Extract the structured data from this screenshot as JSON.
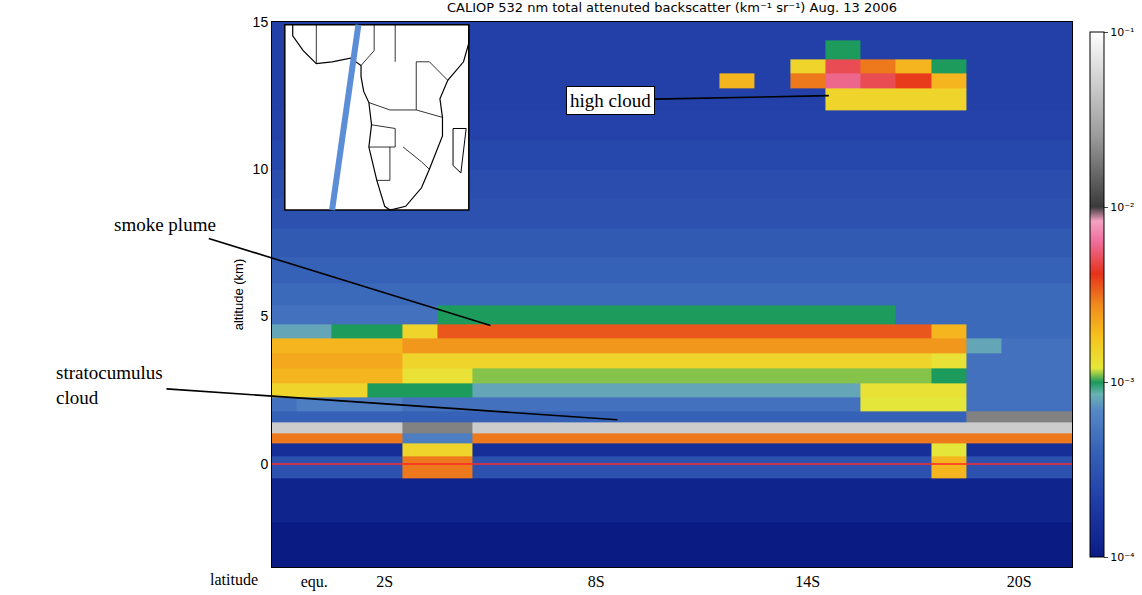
{
  "chart_data": {
    "type": "heatmap",
    "title": "CALIOP 532 nm total attenuted backscatter (km⁻¹ sr⁻¹) Aug. 13 2006",
    "xlabel": "latitude",
    "ylabel": "altitude (km)",
    "xlim": [
      -1.2,
      21.5
    ],
    "ylim": [
      -3.5,
      15
    ],
    "xticks": [
      {
        "value": 0,
        "label": "equ."
      },
      {
        "value": 2,
        "label": "2S"
      },
      {
        "value": 8,
        "label": "8S"
      },
      {
        "value": 14,
        "label": "14S"
      },
      {
        "value": 20,
        "label": "20S"
      }
    ],
    "yticks": [
      0,
      5,
      10,
      15
    ],
    "grid": false,
    "surface_altitude": 0,
    "x": [
      -1,
      0,
      1,
      2,
      3,
      4,
      5,
      6,
      7,
      8,
      9,
      10,
      11,
      12,
      13,
      14,
      15,
      16,
      17,
      18,
      19,
      20,
      21
    ],
    "y": [
      -3,
      -1,
      0,
      0.5,
      0.9,
      1.2,
      1.6,
      2.0,
      2.5,
      3.0,
      3.5,
      4.0,
      4.5,
      5.0,
      5.75,
      6.5,
      7.5,
      8.5,
      9.5,
      10.5,
      11.5,
      12.5,
      13.0,
      13.5,
      14.0,
      14.75
    ],
    "cells": [
      [
        0.0001,
        0.0001,
        0.0001,
        0.0001,
        0.0001,
        0.0001,
        0.0001,
        0.0001,
        0.0001,
        0.0001,
        0.0001,
        0.0001,
        0.0001,
        0.0001,
        0.0001,
        0.0001,
        0.0001,
        0.0001,
        0.0001,
        0.0001,
        0.0001,
        0.0001,
        0.0001
      ],
      [
        0.00012,
        0.00012,
        0.00012,
        0.00012,
        0.00012,
        0.00012,
        0.00012,
        0.00012,
        0.00012,
        0.00012,
        0.00012,
        0.00012,
        0.00012,
        0.00012,
        0.00012,
        0.00012,
        0.00012,
        0.00012,
        0.00012,
        0.00012,
        0.00012,
        0.00012,
        0.00012
      ],
      [
        0.0003,
        0.0003,
        0.0003,
        0.0003,
        0.003,
        0.003,
        0.0003,
        0.0003,
        0.0003,
        0.0003,
        0.0003,
        0.0003,
        0.0003,
        0.0003,
        0.0003,
        0.0003,
        0.0003,
        0.0003,
        0.0003,
        0.002,
        0.0003,
        0.0003,
        0.0003
      ],
      [
        0.00015,
        0.00015,
        0.00015,
        0.00015,
        0.0015,
        0.0015,
        0.00015,
        0.00015,
        0.00015,
        0.00015,
        0.00015,
        0.00015,
        0.00015,
        0.00015,
        0.00015,
        0.00015,
        0.00015,
        0.00015,
        0.00015,
        0.0012,
        0.00015,
        0.00015,
        0.00015
      ],
      [
        0.003,
        0.003,
        0.003,
        0.003,
        0.0006,
        0.0006,
        0.003,
        0.003,
        0.003,
        0.003,
        0.003,
        0.003,
        0.003,
        0.003,
        0.003,
        0.003,
        0.003,
        0.003,
        0.003,
        0.003,
        0.003,
        0.003,
        0.003
      ],
      [
        0.05,
        0.05,
        0.05,
        0.05,
        0.02,
        0.02,
        0.05,
        0.05,
        0.05,
        0.05,
        0.05,
        0.05,
        0.05,
        0.05,
        0.05,
        0.05,
        0.05,
        0.05,
        0.05,
        0.05,
        0.05,
        0.05,
        0.05
      ],
      [
        0.0004,
        0.0004,
        0.0004,
        0.0004,
        0.0004,
        0.0004,
        0.0004,
        0.0004,
        0.0004,
        0.0004,
        0.0004,
        0.0004,
        0.0004,
        0.0004,
        0.0004,
        0.0004,
        0.0004,
        0.0004,
        0.0004,
        0.0004,
        0.02,
        0.02,
        0.02
      ],
      [
        0.0005,
        0.0006,
        0.0006,
        0.0006,
        0.0005,
        0.0005,
        0.0005,
        0.0005,
        0.0005,
        0.0005,
        0.0005,
        0.0005,
        0.0005,
        0.0005,
        0.0005,
        0.0005,
        0.0005,
        0.0012,
        0.0012,
        0.0012,
        0.0005,
        0.0005,
        0.0005
      ],
      [
        0.0015,
        0.0015,
        0.0015,
        0.001,
        0.001,
        0.001,
        0.0008,
        0.0008,
        0.0008,
        0.0008,
        0.0008,
        0.0008,
        0.0008,
        0.0008,
        0.0008,
        0.0008,
        0.0008,
        0.0013,
        0.0013,
        0.0013,
        0.0005,
        0.0005,
        0.0005
      ],
      [
        0.002,
        0.002,
        0.002,
        0.002,
        0.0013,
        0.0013,
        0.0011,
        0.0011,
        0.0011,
        0.0011,
        0.0011,
        0.0011,
        0.0011,
        0.0011,
        0.0011,
        0.0011,
        0.0011,
        0.0011,
        0.0011,
        0.001,
        0.0005,
        0.0005,
        0.0005
      ],
      [
        0.0022,
        0.0022,
        0.0022,
        0.0022,
        0.0015,
        0.0015,
        0.0015,
        0.0015,
        0.0015,
        0.0015,
        0.0015,
        0.0015,
        0.0015,
        0.0015,
        0.0015,
        0.0015,
        0.0015,
        0.0015,
        0.0015,
        0.0013,
        0.0005,
        0.0005,
        0.0005
      ],
      [
        0.002,
        0.002,
        0.002,
        0.002,
        0.0025,
        0.0025,
        0.0025,
        0.0025,
        0.0025,
        0.0025,
        0.0025,
        0.0025,
        0.0025,
        0.0025,
        0.0025,
        0.0025,
        0.0025,
        0.0025,
        0.0025,
        0.0025,
        0.0008,
        0.0005,
        0.0005
      ],
      [
        0.0008,
        0.0008,
        0.001,
        0.001,
        0.0015,
        0.0035,
        0.0035,
        0.0035,
        0.0035,
        0.0035,
        0.0035,
        0.0035,
        0.0035,
        0.0035,
        0.0035,
        0.0035,
        0.0035,
        0.0035,
        0.0035,
        0.002,
        0.00045,
        0.00045,
        0.00045
      ],
      [
        0.0005,
        0.0005,
        0.0005,
        0.0005,
        0.0005,
        0.001,
        0.001,
        0.001,
        0.001,
        0.001,
        0.001,
        0.001,
        0.001,
        0.001,
        0.001,
        0.001,
        0.001,
        0.001,
        0.00045,
        0.00045,
        0.00045,
        0.00045,
        0.00045
      ],
      [
        0.00045,
        0.00045,
        0.00045,
        0.00045,
        0.00045,
        0.00045,
        0.00045,
        0.00045,
        0.00045,
        0.00045,
        0.00045,
        0.00045,
        0.00045,
        0.00045,
        0.00045,
        0.00045,
        0.00045,
        0.00045,
        0.00045,
        0.00045,
        0.00045,
        0.00045,
        0.00045
      ],
      [
        0.0004,
        0.0004,
        0.0004,
        0.0004,
        0.0004,
        0.0004,
        0.0004,
        0.0004,
        0.0004,
        0.0004,
        0.0004,
        0.0004,
        0.0004,
        0.0004,
        0.0004,
        0.0004,
        0.0004,
        0.0004,
        0.0004,
        0.0004,
        0.0004,
        0.0004,
        0.0004
      ],
      [
        0.00035,
        0.00035,
        0.00035,
        0.00035,
        0.00035,
        0.00035,
        0.00035,
        0.00035,
        0.00035,
        0.00035,
        0.00035,
        0.00035,
        0.00035,
        0.00035,
        0.00035,
        0.00035,
        0.00035,
        0.00035,
        0.00035,
        0.00035,
        0.00035,
        0.00035,
        0.00035
      ],
      [
        0.0003,
        0.0003,
        0.0003,
        0.0003,
        0.0003,
        0.0003,
        0.0003,
        0.0003,
        0.0003,
        0.0003,
        0.0003,
        0.0003,
        0.0003,
        0.0003,
        0.0003,
        0.0003,
        0.0003,
        0.0003,
        0.0003,
        0.0003,
        0.0003,
        0.0003,
        0.0003
      ],
      [
        0.00028,
        0.00028,
        0.00028,
        0.00028,
        0.00028,
        0.00028,
        0.00028,
        0.00028,
        0.00028,
        0.00028,
        0.00028,
        0.00028,
        0.00028,
        0.00028,
        0.00028,
        0.00028,
        0.00028,
        0.00028,
        0.00028,
        0.00028,
        0.00028,
        0.00028,
        0.00028
      ],
      [
        0.00025,
        0.00025,
        0.00025,
        0.00025,
        0.00025,
        0.00025,
        0.00025,
        0.00025,
        0.00025,
        0.00025,
        0.00025,
        0.00025,
        0.00025,
        0.00025,
        0.00025,
        0.00025,
        0.00025,
        0.00025,
        0.00025,
        0.00025,
        0.00025,
        0.00025,
        0.00025
      ],
      [
        0.00023,
        0.00023,
        0.00023,
        0.00023,
        0.00023,
        0.00023,
        0.00023,
        0.00023,
        0.00023,
        0.00023,
        0.00023,
        0.00023,
        0.00023,
        0.00023,
        0.00023,
        0.00023,
        0.00023,
        0.00023,
        0.00023,
        0.00023,
        0.00023,
        0.00023,
        0.00023
      ],
      [
        0.00022,
        0.00022,
        0.00022,
        0.00022,
        0.00022,
        0.00022,
        0.00022,
        0.00022,
        0.00022,
        0.00022,
        0.00022,
        0.00022,
        0.00022,
        0.00022,
        0.00022,
        0.00022,
        0.0015,
        0.0015,
        0.0015,
        0.0015,
        0.00022,
        0.00022,
        0.00022
      ],
      [
        0.00022,
        0.00022,
        0.00022,
        0.00022,
        0.00022,
        0.00022,
        0.00022,
        0.00022,
        0.00022,
        0.00022,
        0.00022,
        0.00022,
        0.00022,
        0.002,
        0.00022,
        0.003,
        0.006,
        0.005,
        0.004,
        0.002,
        0.00022,
        0.00022,
        0.00022
      ],
      [
        0.00022,
        0.00022,
        0.00022,
        0.00022,
        0.00022,
        0.00022,
        0.00022,
        0.00022,
        0.00022,
        0.00022,
        0.00022,
        0.00022,
        0.00022,
        0.00022,
        0.00022,
        0.0015,
        0.005,
        0.003,
        0.002,
        0.001,
        0.00022,
        0.00022,
        0.00022
      ],
      [
        0.00022,
        0.00022,
        0.00022,
        0.00022,
        0.00022,
        0.00022,
        0.00022,
        0.00022,
        0.00022,
        0.00022,
        0.00022,
        0.00022,
        0.00022,
        0.00022,
        0.00022,
        0.00022,
        0.001,
        0.00022,
        0.00022,
        0.00022,
        0.00022,
        0.00022,
        0.00022
      ],
      [
        0.00022,
        0.00022,
        0.00022,
        0.00022,
        0.00022,
        0.00022,
        0.00022,
        0.00022,
        0.00022,
        0.00022,
        0.00022,
        0.00022,
        0.00022,
        0.00022,
        0.00022,
        0.00022,
        0.00022,
        0.00022,
        0.00022,
        0.00022,
        0.00022,
        0.00022,
        0.00022
      ]
    ],
    "colorbar": {
      "range": [
        0.0001,
        0.1
      ],
      "log": true,
      "ticks": [
        {
          "value": 0.0001,
          "label": "10⁻⁴"
        },
        {
          "value": 0.001,
          "label": "10⁻³"
        },
        {
          "value": 0.01,
          "label": "10⁻²"
        },
        {
          "value": 0.1,
          "label": "10⁻¹"
        }
      ]
    },
    "annotations": [
      {
        "text": "high cloud",
        "x": 14.6,
        "y": 12.5
      },
      {
        "text": "smoke plume",
        "x": 5,
        "y": 4.7
      },
      {
        "text": "stratocumulus cloud",
        "x": 8.6,
        "y": 1.5
      }
    ]
  }
}
